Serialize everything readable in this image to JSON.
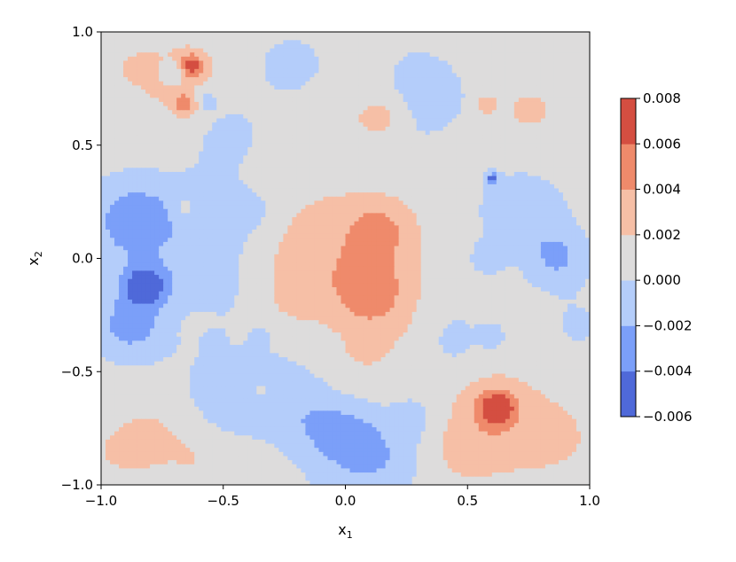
{
  "chart_data": {
    "type": "contour",
    "xlabel": "x",
    "xlabel_sub": "1",
    "ylabel": "x",
    "ylabel_sub": "2",
    "xlim": [
      -1.0,
      1.0
    ],
    "ylim": [
      -1.0,
      1.0
    ],
    "xticks": [
      -1.0,
      -0.5,
      0.0,
      0.5,
      1.0
    ],
    "xtick_labels": [
      "−1.0",
      "−0.5",
      "0.0",
      "0.5",
      "1.0"
    ],
    "yticks": [
      -1.0,
      -0.5,
      0.0,
      0.5,
      1.0
    ],
    "ytick_labels": [
      "−1.0",
      "−0.5",
      "0.0",
      "0.5",
      "1.0"
    ],
    "grid": false,
    "colormap": "coolwarm",
    "levels": [
      -0.006,
      -0.004,
      -0.002,
      0.0,
      0.002,
      0.004,
      0.006,
      0.008
    ],
    "level_labels": [
      "−0.006",
      "−0.004",
      "−0.002",
      "0.000",
      "0.002",
      "0.004",
      "0.006",
      "0.008"
    ],
    "level_colors": [
      "#4f69d9",
      "#7b9ff9",
      "#b4cdfa",
      "#dddcdc",
      "#f6bfa6",
      "#ef8a6b",
      "#d44e41"
    ],
    "features": [
      {
        "x": 0.62,
        "y": -0.66,
        "amp": 0.0062,
        "s": 0.05
      },
      {
        "x": 0.62,
        "y": -0.72,
        "amp": 0.0025,
        "s": 0.16
      },
      {
        "x": 0.45,
        "y": -0.85,
        "amp": 0.001,
        "s": 0.12
      },
      {
        "x": 0.88,
        "y": -0.8,
        "amp": 0.0012,
        "s": 0.12
      },
      {
        "x": 0.1,
        "y": -0.14,
        "amp": 0.0035,
        "s": 0.11
      },
      {
        "x": 0.13,
        "y": 0.12,
        "amp": 0.0032,
        "s": 0.08
      },
      {
        "x": 0.05,
        "y": 0.05,
        "amp": 0.0016,
        "s": 0.24
      },
      {
        "x": -0.15,
        "y": 0.05,
        "amp": 0.0012,
        "s": 0.13
      },
      {
        "x": -0.24,
        "y": -0.2,
        "amp": 0.001,
        "s": 0.12
      },
      {
        "x": -0.82,
        "y": -0.12,
        "amp": -0.006,
        "s": 0.06
      },
      {
        "x": -0.86,
        "y": 0.18,
        "amp": -0.0035,
        "s": 0.11
      },
      {
        "x": -0.88,
        "y": -0.3,
        "amp": -0.003,
        "s": 0.09
      },
      {
        "x": -0.82,
        "y": -0.05,
        "amp": -0.0015,
        "s": 0.25
      },
      {
        "x": -0.7,
        "y": 0.82,
        "amp": -0.003,
        "s": 0.035
      },
      {
        "x": -0.63,
        "y": 0.85,
        "amp": 0.005,
        "s": 0.04
      },
      {
        "x": -0.68,
        "y": 0.78,
        "amp": 0.0018,
        "s": 0.12
      },
      {
        "x": -0.65,
        "y": 0.68,
        "amp": 0.004,
        "s": 0.035
      },
      {
        "x": -0.88,
        "y": 0.85,
        "amp": 0.001,
        "s": 0.09
      },
      {
        "x": -0.58,
        "y": 0.7,
        "amp": -0.002,
        "s": 0.04
      },
      {
        "x": -0.48,
        "y": 0.55,
        "amp": -0.0012,
        "s": 0.12
      },
      {
        "x": -0.22,
        "y": 0.85,
        "amp": -0.0015,
        "s": 0.1
      },
      {
        "x": -0.05,
        "y": 0.6,
        "amp": 0.0008,
        "s": 0.1
      },
      {
        "x": 0.15,
        "y": 0.62,
        "amp": 0.002,
        "s": 0.07
      },
      {
        "x": 0.3,
        "y": 0.8,
        "amp": -0.0015,
        "s": 0.09
      },
      {
        "x": 0.25,
        "y": 0.55,
        "amp": -0.0008,
        "s": 0.12
      },
      {
        "x": 0.4,
        "y": 0.7,
        "amp": -0.001,
        "s": 0.1
      },
      {
        "x": 0.82,
        "y": 0.72,
        "amp": 0.0008,
        "s": 0.15
      },
      {
        "x": 0.58,
        "y": 0.68,
        "amp": 0.0025,
        "s": 0.03
      },
      {
        "x": 0.75,
        "y": 0.65,
        "amp": 0.002,
        "s": 0.04
      },
      {
        "x": 0.95,
        "y": 0.52,
        "amp": 0.0008,
        "s": 0.08
      },
      {
        "x": 0.72,
        "y": 0.2,
        "amp": -0.0025,
        "s": 0.12
      },
      {
        "x": 0.87,
        "y": 0.0,
        "amp": -0.003,
        "s": 0.09
      },
      {
        "x": 0.6,
        "y": 0.35,
        "amp": -0.005,
        "s": 0.02
      },
      {
        "x": 0.58,
        "y": 0.0,
        "amp": -0.002,
        "s": 0.05
      },
      {
        "x": 0.45,
        "y": -0.3,
        "amp": -0.001,
        "s": 0.1
      },
      {
        "x": 0.45,
        "y": -0.38,
        "amp": -0.0015,
        "s": 0.04
      },
      {
        "x": 0.6,
        "y": -0.35,
        "amp": -0.002,
        "s": 0.04
      },
      {
        "x": 0.95,
        "y": -0.3,
        "amp": -0.001,
        "s": 0.1
      },
      {
        "x": 0.15,
        "y": -0.33,
        "amp": 0.0008,
        "s": 0.12
      },
      {
        "x": 0.08,
        "y": -0.4,
        "amp": 0.0016,
        "s": 0.05
      },
      {
        "x": 0.0,
        "y": -0.78,
        "amp": -0.003,
        "s": 0.09
      },
      {
        "x": 0.15,
        "y": -0.88,
        "amp": -0.0022,
        "s": 0.12
      },
      {
        "x": -0.15,
        "y": -0.72,
        "amp": -0.0018,
        "s": 0.1
      },
      {
        "x": 0.3,
        "y": -0.7,
        "amp": -0.0015,
        "s": 0.08
      },
      {
        "x": -0.45,
        "y": -0.6,
        "amp": -0.0015,
        "s": 0.15
      },
      {
        "x": -0.25,
        "y": -0.55,
        "amp": -0.001,
        "s": 0.12
      },
      {
        "x": -0.55,
        "y": -0.35,
        "amp": -0.002,
        "s": 0.03
      },
      {
        "x": -0.35,
        "y": -0.35,
        "amp": -0.002,
        "s": 0.03
      },
      {
        "x": -0.35,
        "y": -0.58,
        "amp": 0.0015,
        "s": 0.03
      },
      {
        "x": -0.8,
        "y": -0.8,
        "amp": 0.0022,
        "s": 0.09
      },
      {
        "x": -0.92,
        "y": -0.85,
        "amp": 0.0015,
        "s": 0.07
      },
      {
        "x": -0.62,
        "y": -0.88,
        "amp": 0.0012,
        "s": 0.07
      },
      {
        "x": -0.55,
        "y": -0.1,
        "amp": -0.0012,
        "s": 0.12
      },
      {
        "x": -0.55,
        "y": 0.2,
        "amp": -0.0015,
        "s": 0.12
      },
      {
        "x": -0.66,
        "y": 0.22,
        "amp": 0.0018,
        "s": 0.04
      },
      {
        "x": -0.35,
        "y": 0.2,
        "amp": -0.001,
        "s": 0.08
      },
      {
        "x": -0.6,
        "y": -0.3,
        "amp": 0.0015,
        "s": 0.05
      },
      {
        "x": 0.0,
        "y": -0.95,
        "amp": -0.001,
        "s": 0.15
      }
    ]
  }
}
